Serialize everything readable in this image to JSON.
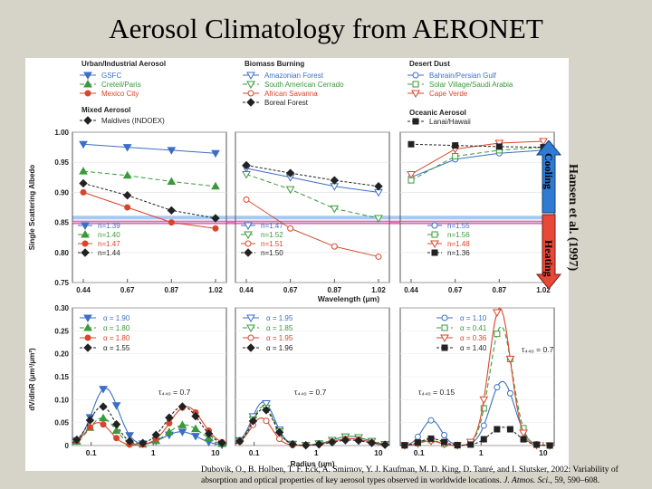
{
  "title": "Aerosol Climatology from AERONET",
  "annotation": {
    "source": "Hansen et al. (1997)",
    "cooling": "Cooling",
    "heating": "Heating"
  },
  "citation": {
    "authors": "Dubovik, O., B. Holben, T. F. Eck, A. Smirnov, Y. J. Kaufman, M. D. King, D. Tanré, and I. Slutsker, 2002: Variability of absorption and optical properties of key aerosol types observed in worldwide locations.",
    "journal": "J. Atmos. Sci.",
    "volume": ", 59, 590–608."
  },
  "colors": {
    "blue": "#3c6fc4",
    "green": "#3a9a3a",
    "red": "#d9452b",
    "black": "#222222",
    "cooling_band": "#a7c9ef",
    "heating_band": "#e070b8"
  },
  "chart_data": [
    {
      "type": "line",
      "group_title": "Urban/Industrial Aerosol",
      "sub_title": "Mixed Aerosol",
      "ylabel": "Single Scattering Albedo",
      "xlabel": "",
      "x": [
        0.44,
        0.67,
        0.87,
        1.02
      ],
      "xticks": [
        "0.44",
        "0.67",
        "0.87",
        "1.02"
      ],
      "ylim": [
        0.75,
        1.0
      ],
      "yticks": [
        "0.75",
        "0.80",
        "0.85",
        "0.90",
        "0.95",
        "1.00"
      ],
      "series": [
        {
          "name": "GSFC",
          "n": "n=1.39",
          "color": "blue",
          "marker": "tri-down",
          "values": [
            0.98,
            0.975,
            0.97,
            0.965
          ]
        },
        {
          "name": "Creteil/Paris",
          "n": "n=1.40",
          "color": "green",
          "marker": "tri-up",
          "values": [
            0.935,
            0.928,
            0.918,
            0.91
          ]
        },
        {
          "name": "Mexico City",
          "n": "n=1.47",
          "color": "red",
          "marker": "circle",
          "values": [
            0.9,
            0.875,
            0.85,
            0.84
          ]
        },
        {
          "name": "Maldives (INDOEX)",
          "n": "n=1.44",
          "color": "black",
          "marker": "diamond",
          "values": [
            0.915,
            0.895,
            0.87,
            0.857
          ]
        }
      ]
    },
    {
      "type": "line",
      "group_title": "Biomass Burning",
      "xlabel": "Wavelength (μm)",
      "x": [
        0.44,
        0.67,
        0.87,
        1.02
      ],
      "xticks": [
        "0.44",
        "0.67",
        "0.87",
        "1.02"
      ],
      "ylim": [
        0.75,
        1.0
      ],
      "series": [
        {
          "name": "Amazonian Forest",
          "n": "n=1.47",
          "color": "blue",
          "marker": "tri-down-open",
          "values": [
            0.94,
            0.925,
            0.91,
            0.9
          ]
        },
        {
          "name": "South American Cerrado",
          "n": "n=1.52",
          "color": "green",
          "marker": "tri-down-open",
          "values": [
            0.93,
            0.905,
            0.873,
            0.857
          ]
        },
        {
          "name": "African Savanna",
          "n": "n=1.51",
          "color": "red",
          "marker": "circle-open",
          "values": [
            0.888,
            0.84,
            0.81,
            0.793
          ]
        },
        {
          "name": "Boreal Forest",
          "n": "n=1.50",
          "color": "black",
          "marker": "diamond",
          "values": [
            0.945,
            0.932,
            0.92,
            0.91
          ]
        }
      ]
    },
    {
      "type": "line",
      "group_title": "Desert Dust",
      "sub_title": "Oceanic Aerosol",
      "x": [
        0.44,
        0.67,
        0.87,
        1.02
      ],
      "xticks": [
        "0.44",
        "0.67",
        "0.87",
        "1.02"
      ],
      "ylim": [
        0.75,
        1.0
      ],
      "series": [
        {
          "name": "Bahrain/Persian Gulf",
          "n": "n=1.55",
          "color": "blue",
          "marker": "circle-open",
          "values": [
            0.925,
            0.955,
            0.965,
            0.97
          ]
        },
        {
          "name": "Solar Village/Saudi Arabia",
          "n": "n=1.56",
          "color": "green",
          "marker": "square-open",
          "values": [
            0.92,
            0.96,
            0.97,
            0.975
          ]
        },
        {
          "name": "Cape Verde",
          "n": "n=1.48",
          "color": "red",
          "marker": "tri-down-open",
          "values": [
            0.93,
            0.972,
            0.982,
            0.985
          ]
        },
        {
          "name": "Lanai/Hawaii",
          "n": "n=1.36",
          "color": "black",
          "marker": "square",
          "values": [
            0.98,
            0.978,
            0.976,
            0.975
          ]
        }
      ]
    },
    {
      "type": "line",
      "ylabel": "dV/dlnR (μm³/μm²)",
      "ylim": [
        0,
        0.3
      ],
      "yticks": [
        "0",
        "0.05",
        "0.10",
        "0.15",
        "0.20",
        "0.25",
        "0.30"
      ],
      "xticks": [
        "0.1",
        "1",
        "10"
      ],
      "tau_label": "τ₄₄₀ = 0.7",
      "series": [
        {
          "alpha": "α = 1.90",
          "color": "blue",
          "marker": "tri-down",
          "modes": [
            [
              0.17,
              0.48,
              0.125
            ],
            [
              2.8,
              0.62,
              0.03
            ]
          ]
        },
        {
          "alpha": "α = 1.80",
          "color": "green",
          "marker": "tri-up",
          "modes": [
            [
              0.15,
              0.48,
              0.06
            ],
            [
              3.2,
              0.62,
              0.045
            ]
          ]
        },
        {
          "alpha": "α = 1.80",
          "color": "red",
          "marker": "circle",
          "modes": [
            [
              0.13,
              0.45,
              0.05
            ],
            [
              3.4,
              0.6,
              0.085
            ]
          ]
        },
        {
          "alpha": "α = 1.55",
          "color": "black",
          "marker": "diamond",
          "modes": [
            [
              0.15,
              0.48,
              0.085
            ],
            [
              3.0,
              0.62,
              0.085
            ]
          ]
        }
      ]
    },
    {
      "type": "line",
      "xlabel": "Radius (μm)",
      "xticks": [
        "0.1",
        "1",
        "10"
      ],
      "ylim": [
        0,
        0.3
      ],
      "tau_label": "τ₄₄₀ = 0.7",
      "series": [
        {
          "alpha": "α = 1.95",
          "color": "blue",
          "marker": "tri-down-open",
          "modes": [
            [
              0.14,
              0.42,
              0.095
            ],
            [
              3.5,
              0.65,
              0.02
            ]
          ]
        },
        {
          "alpha": "α = 1.85",
          "color": "green",
          "marker": "tri-down-open",
          "modes": [
            [
              0.14,
              0.42,
              0.085
            ],
            [
              3.5,
              0.65,
              0.02
            ]
          ]
        },
        {
          "alpha": "α = 1.95",
          "color": "red",
          "marker": "circle-open",
          "modes": [
            [
              0.13,
              0.4,
              0.06
            ],
            [
              3.5,
              0.65,
              0.015
            ]
          ]
        },
        {
          "alpha": "α = 1.96",
          "color": "black",
          "marker": "diamond",
          "modes": [
            [
              0.14,
              0.42,
              0.08
            ],
            [
              3.5,
              0.65,
              0.012
            ]
          ]
        }
      ]
    },
    {
      "type": "line",
      "xticks": [
        "0.1",
        "1",
        "10"
      ],
      "ylim": [
        0,
        0.3
      ],
      "tau_labels": [
        "τ₄₄₀ = 0.15",
        "τ₄₄₀ = 0.7"
      ],
      "series": [
        {
          "alpha": "α = 1.10",
          "color": "blue",
          "marker": "circle-open",
          "modes": [
            [
              0.16,
              0.35,
              0.055
            ],
            [
              2.2,
              0.45,
              0.14
            ]
          ]
        },
        {
          "alpha": "α = 0.41",
          "color": "green",
          "marker": "square-open",
          "modes": [
            [
              0.15,
              0.35,
              0.012
            ],
            [
              2.1,
              0.42,
              0.26
            ]
          ]
        },
        {
          "alpha": "α = 0.36",
          "color": "red",
          "marker": "tri-down-open",
          "modes": [
            [
              0.15,
              0.35,
              0.01
            ],
            [
              2.0,
              0.4,
              0.3
            ]
          ]
        },
        {
          "alpha": "α = 1.40",
          "color": "black",
          "marker": "square",
          "modes": [
            [
              0.16,
              0.4,
              0.015
            ],
            [
              2.3,
              0.5,
              0.04
            ]
          ]
        }
      ]
    }
  ]
}
